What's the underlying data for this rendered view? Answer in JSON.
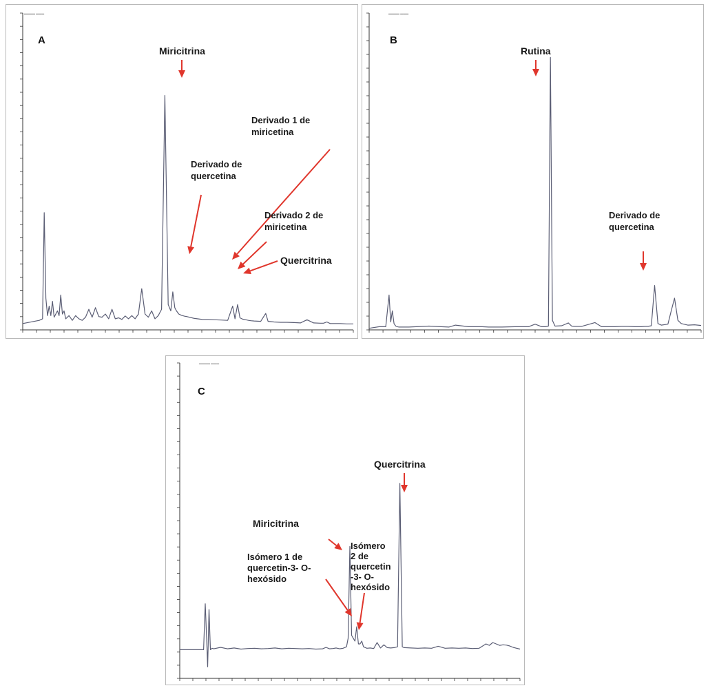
{
  "colors": {
    "trace": "#5a5d74",
    "arrow": "#e0362c",
    "axis": "#333333"
  },
  "chart_data": [
    {
      "type": "line",
      "panel": "A",
      "title": "",
      "xlabel": "",
      "ylabel": "",
      "xlim": [
        0,
        100
      ],
      "ylim": [
        0,
        100
      ],
      "series": [
        {
          "x": [
            0,
            5,
            6,
            6.5,
            7,
            7.5,
            8,
            8.5,
            9,
            9.5,
            10,
            10.5,
            11,
            11.5,
            12,
            12.5,
            13,
            14,
            15,
            16,
            17,
            18,
            19,
            20,
            21,
            22,
            23,
            24,
            25,
            26,
            27,
            28,
            29,
            30,
            31,
            32,
            33,
            34,
            35,
            36,
            37,
            38,
            39,
            40,
            41,
            42,
            43,
            44,
            44.8,
            45.4,
            46,
            46.5,
            47.2,
            48,
            49,
            49.6,
            50.4,
            51.2,
            51.6,
            52,
            52.8,
            53.6,
            54.4,
            56,
            58,
            60,
            62,
            63.5,
            64.2,
            65,
            65.7,
            66.5,
            67.5,
            68.3,
            69,
            70,
            72,
            73.5,
            74.2,
            75,
            76,
            78,
            80,
            82,
            84,
            86,
            88,
            90,
            91,
            92,
            93,
            94,
            96,
            98,
            100
          ],
          "y": [
            2,
            3,
            3.5,
            37,
            10,
            4.5,
            7.5,
            4.5,
            9,
            4,
            5,
            6,
            4.5,
            11,
            5,
            6,
            3.5,
            4.5,
            3,
            4.5,
            3.5,
            3,
            4,
            6.5,
            4,
            7,
            4.2,
            4,
            5,
            3.5,
            6.5,
            3.5,
            3.8,
            3.3,
            4.4,
            3.5,
            4.5,
            3.5,
            5,
            13,
            5,
            4,
            6,
            3.5,
            4.5,
            6.5,
            74,
            8,
            6,
            12,
            7,
            6,
            5,
            4.6,
            4.3,
            4.2,
            4,
            3.8,
            3.7,
            3.6,
            3.5,
            3.4,
            3.3,
            3.3,
            3.2,
            3.1,
            3,
            7.5,
            3.5,
            8,
            3.8,
            3.4,
            3.2,
            3,
            2.9,
            2.8,
            2.7,
            5.2,
            2.7,
            2.6,
            2.5,
            2.4,
            2.4,
            2.3,
            2.2,
            3.2,
            2.2,
            2.1,
            2.1,
            2.5,
            2,
            2,
            2,
            1.9,
            1.9
          ]
        }
      ],
      "annotations": [
        {
          "label": [
            "Miricitrina"
          ],
          "x": 44.8
        },
        {
          "label": [
            "Derivado de",
            "quercetina"
          ],
          "x": 46.5
        },
        {
          "label": [
            "Derivado 1 de",
            "miricetina"
          ],
          "x": 63.5
        },
        {
          "label": [
            "Derivado 2 de",
            "miricetina"
          ],
          "x": 65
        },
        {
          "label": [
            "Quercitrina"
          ],
          "x": 66.5
        }
      ]
    },
    {
      "type": "line",
      "panel": "B",
      "title": "",
      "xlabel": "",
      "ylabel": "",
      "xlim": [
        0,
        100
      ],
      "ylim": [
        0,
        100
      ],
      "series": [
        {
          "x": [
            0,
            3,
            5,
            6,
            6.5,
            7,
            7.5,
            8,
            8.5,
            9,
            12,
            18,
            24,
            26,
            30,
            34,
            36,
            40,
            44,
            48,
            50,
            52,
            53,
            54,
            54.6,
            55.2,
            56,
            58,
            60,
            61,
            62,
            64,
            68,
            70,
            72,
            74,
            76,
            78,
            80,
            82,
            83,
            84,
            85,
            86,
            87,
            88,
            90,
            91,
            92,
            93,
            94,
            96,
            98,
            100
          ],
          "y": [
            0.5,
            1,
            1,
            11,
            2.5,
            6,
            2,
            1.2,
            1,
            0.9,
            0.9,
            1.2,
            0.9,
            1.5,
            1,
            1,
            0.9,
            0.9,
            1,
            1,
            1.8,
            1,
            1,
            1.2,
            86,
            3,
            1.2,
            1.3,
            2.2,
            1.2,
            1.1,
            1.1,
            2.3,
            1,
            1,
            1,
            1.1,
            1.1,
            1,
            1,
            1.1,
            1.1,
            1.3,
            14,
            2,
            1.5,
            1.8,
            6,
            10,
            3,
            2,
            1.5,
            1.6,
            1.4
          ]
        }
      ],
      "annotations": [
        {
          "label": [
            "Rutina"
          ],
          "x": 54.6
        },
        {
          "label": [
            "Derivado de",
            "quercetina"
          ],
          "x": 86
        }
      ]
    },
    {
      "type": "line",
      "panel": "C",
      "title": "",
      "xlabel": "",
      "ylabel": "",
      "xlim": [
        0,
        100
      ],
      "ylim": [
        -10,
        100
      ],
      "series": [
        {
          "x": [
            0,
            6,
            7,
            7.5,
            8,
            8.2,
            8.6,
            9,
            9.5,
            10,
            12,
            14,
            16,
            18,
            20,
            22,
            24,
            26,
            28,
            30,
            32,
            34,
            36,
            38,
            40,
            42,
            43,
            44,
            45,
            46,
            47,
            48,
            49,
            49.5,
            50,
            50.5,
            51,
            51.5,
            52,
            52.5,
            53,
            53.5,
            54,
            55,
            56,
            57,
            58,
            59,
            60,
            61,
            62,
            63,
            64,
            64.7,
            65.4,
            66,
            68,
            70,
            72,
            74,
            76,
            78,
            80,
            82,
            84,
            86,
            88,
            90,
            91,
            92,
            93,
            94,
            95,
            96,
            97,
            98,
            99,
            100
          ],
          "y": [
            0,
            0,
            0,
            16,
            1,
            -6,
            14,
            0,
            0.5,
            0.3,
            0.8,
            0.3,
            0.6,
            0.2,
            0.4,
            0.5,
            0.3,
            0.4,
            0.6,
            0.3,
            0.5,
            0.4,
            0.3,
            0.4,
            0.2,
            0.3,
            0.8,
            0.3,
            0.4,
            0.6,
            0.3,
            0.5,
            1,
            4,
            36,
            5,
            4,
            3,
            8,
            2,
            2,
            3,
            1,
            0.5,
            0.6,
            0.4,
            2.5,
            0.6,
            1.7,
            0.7,
            0.6,
            0.7,
            1,
            58,
            1,
            0.7,
            0.6,
            0.5,
            0.6,
            0.5,
            1.2,
            0.5,
            0.6,
            0.5,
            0.6,
            0.4,
            0.5,
            2,
            1.5,
            2.5,
            2,
            1.5,
            1.7,
            1.6,
            1.3,
            0.8,
            0.5,
            0.2
          ]
        }
      ],
      "annotations": [
        {
          "label": [
            "Quercitrina"
          ],
          "x": 64.7
        },
        {
          "label": [
            "Miricitrina"
          ],
          "x": 50
        },
        {
          "label": [
            "Isómero",
            "2 de",
            "quercetin",
            "-3- O-",
            "hexósido"
          ],
          "x": 52.5
        },
        {
          "label": [
            "Isómero 1 de",
            "quercetin-3- O-",
            "hexósido"
          ],
          "x": 51.5
        }
      ]
    }
  ]
}
